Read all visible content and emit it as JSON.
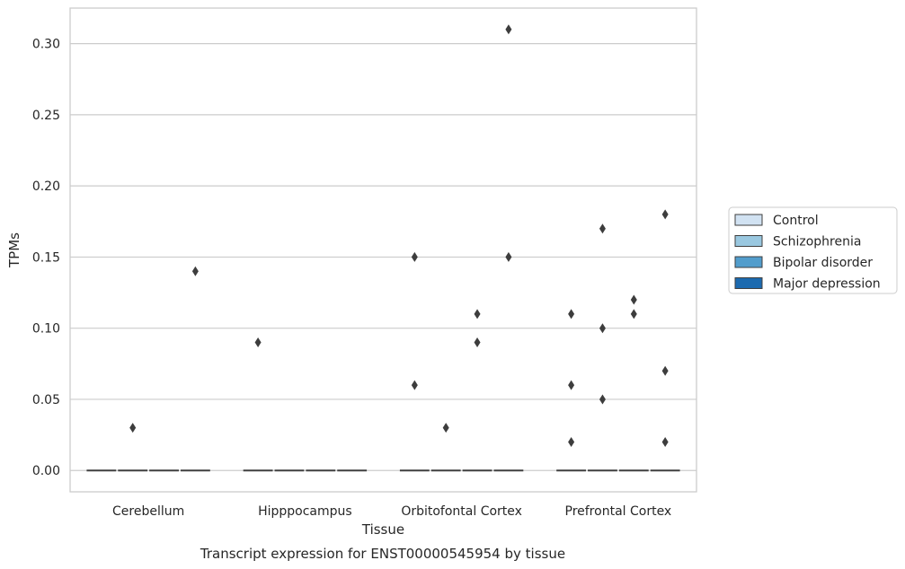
{
  "chart_data": {
    "type": "boxplot",
    "title": "",
    "xlabel": "Tissue",
    "ylabel": "TPMs",
    "caption": "Transcript expression for ENST00000545954 by tissue",
    "ylim": [
      -0.015,
      0.325
    ],
    "yticks": [
      0.0,
      0.05,
      0.1,
      0.15,
      0.2,
      0.25,
      0.3
    ],
    "ytick_labels": [
      "0.00",
      "0.05",
      "0.10",
      "0.15",
      "0.20",
      "0.25",
      "0.30"
    ],
    "grid": true,
    "legend_position": "right",
    "categories": [
      "Cerebellum",
      "Hipppocampus",
      "Orbitofontal Cortex",
      "Prefrontal Cortex"
    ],
    "series": [
      {
        "name": "Control",
        "color": "#d1e2f2",
        "medians": [
          0,
          0,
          0,
          0
        ],
        "outliers": [
          [],
          [
            0.09
          ],
          [
            0.06,
            0.15
          ],
          [
            0.11,
            0.06,
            0.02
          ]
        ]
      },
      {
        "name": "Schizophrenia",
        "color": "#9ac8e0",
        "medians": [
          0,
          0,
          0,
          0
        ],
        "outliers": [
          [
            0.03
          ],
          [],
          [
            0.03
          ],
          [
            0.17,
            0.1,
            0.05
          ]
        ]
      },
      {
        "name": "Bipolar disorder",
        "color": "#529dcc",
        "medians": [
          0,
          0,
          0,
          0
        ],
        "outliers": [
          [],
          [],
          [
            0.11,
            0.09
          ],
          [
            0.12,
            0.11
          ]
        ]
      },
      {
        "name": "Major depression",
        "color": "#1c6aaf",
        "medians": [
          0,
          0,
          0,
          0
        ],
        "outliers": [
          [
            0.14
          ],
          [],
          [
            0.31,
            0.15
          ],
          [
            0.18,
            0.07,
            0.02
          ]
        ]
      }
    ]
  }
}
